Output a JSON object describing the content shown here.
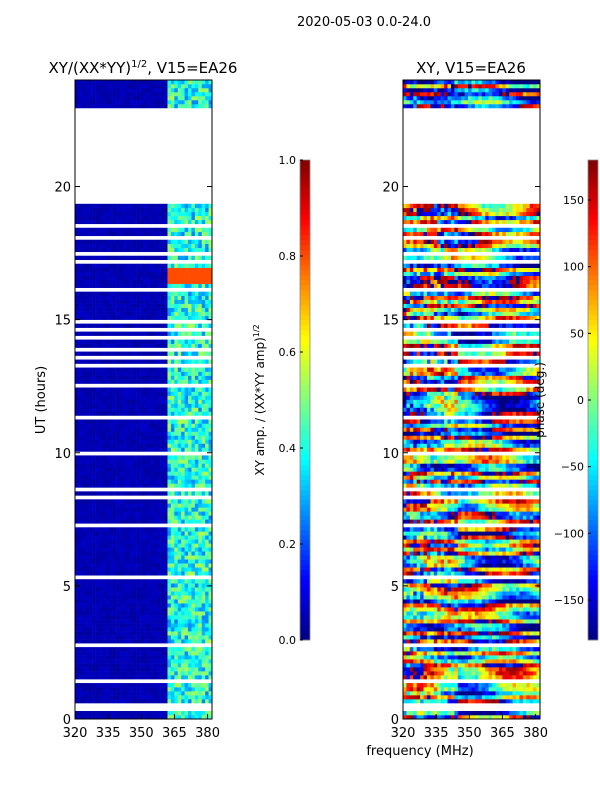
{
  "chart_data": [
    {
      "type": "heatmap",
      "suptitle": "2020-05-03 0.0-24.0",
      "title": "XY/(XX*YY)",
      "title_sup": "1/2",
      "title_suffix": ", V15=EA26",
      "xlabel": "frequency (MHz)",
      "ylabel": "UT (hours)",
      "xlim": [
        320,
        382
      ],
      "ylim": [
        0,
        24
      ],
      "xticks": [
        "320",
        "335",
        "350",
        "365",
        "380"
      ],
      "xtick_values": [
        320,
        335,
        350,
        365,
        380
      ],
      "yticks": [
        "0",
        "5",
        "10",
        "15",
        "20"
      ],
      "ytick_values": [
        0,
        5,
        10,
        15,
        20
      ],
      "colormap": "jet",
      "colorbar": {
        "label": "XY amp. / (XX*YY amp)",
        "label_sup": "1/2",
        "range": [
          0,
          1
        ],
        "ticks": [
          "0.0",
          "0.2",
          "0.4",
          "0.6",
          "0.8",
          "1.0"
        ],
        "tick_values": [
          0,
          0.2,
          0.4,
          0.6,
          0.8,
          1.0
        ]
      },
      "description_values": {
        "background_level": 0.05,
        "high_band_mhz": [
          362,
          382
        ],
        "high_band_level": 0.45,
        "flagged_gap_hours": [
          19.35,
          23.0
        ]
      }
    },
    {
      "type": "heatmap",
      "title": "XY, V15=EA26",
      "xlabel": "frequency (MHz)",
      "xlim": [
        320,
        382
      ],
      "ylim": [
        0,
        24
      ],
      "xticks": [
        "320",
        "335",
        "350",
        "365",
        "380"
      ],
      "xtick_values": [
        320,
        335,
        350,
        365,
        380
      ],
      "yticks": [
        "0",
        "5",
        "10",
        "15",
        "20"
      ],
      "ytick_values": [
        0,
        5,
        10,
        15,
        20
      ],
      "colormap": "jet",
      "colorbar": {
        "label": "phase (deg.)",
        "range": [
          -180,
          180
        ],
        "ticks": [
          "−150",
          "−100",
          "−50",
          "0",
          "50",
          "100",
          "150"
        ],
        "tick_values": [
          -150,
          -100,
          -50,
          0,
          50,
          100,
          150
        ]
      },
      "description_values": {
        "flagged_gap_hours": [
          19.35,
          23.0
        ]
      }
    }
  ],
  "flagged_hours": [
    0.35,
    0.5,
    1.05,
    1.4,
    1.5,
    2.7,
    2.8,
    3.6,
    5.1,
    5.3,
    6.0,
    6.3,
    6.9,
    7.3,
    7.5,
    7.8,
    8.3,
    8.6,
    9.0,
    10.0,
    11.3,
    11.4,
    12.5,
    13.3,
    13.6,
    13.9,
    14.3,
    14.6,
    14.9,
    15.3,
    15.6,
    16.1,
    17.2,
    17.5,
    18.1,
    18.5,
    18.9,
    23.7
  ]
}
